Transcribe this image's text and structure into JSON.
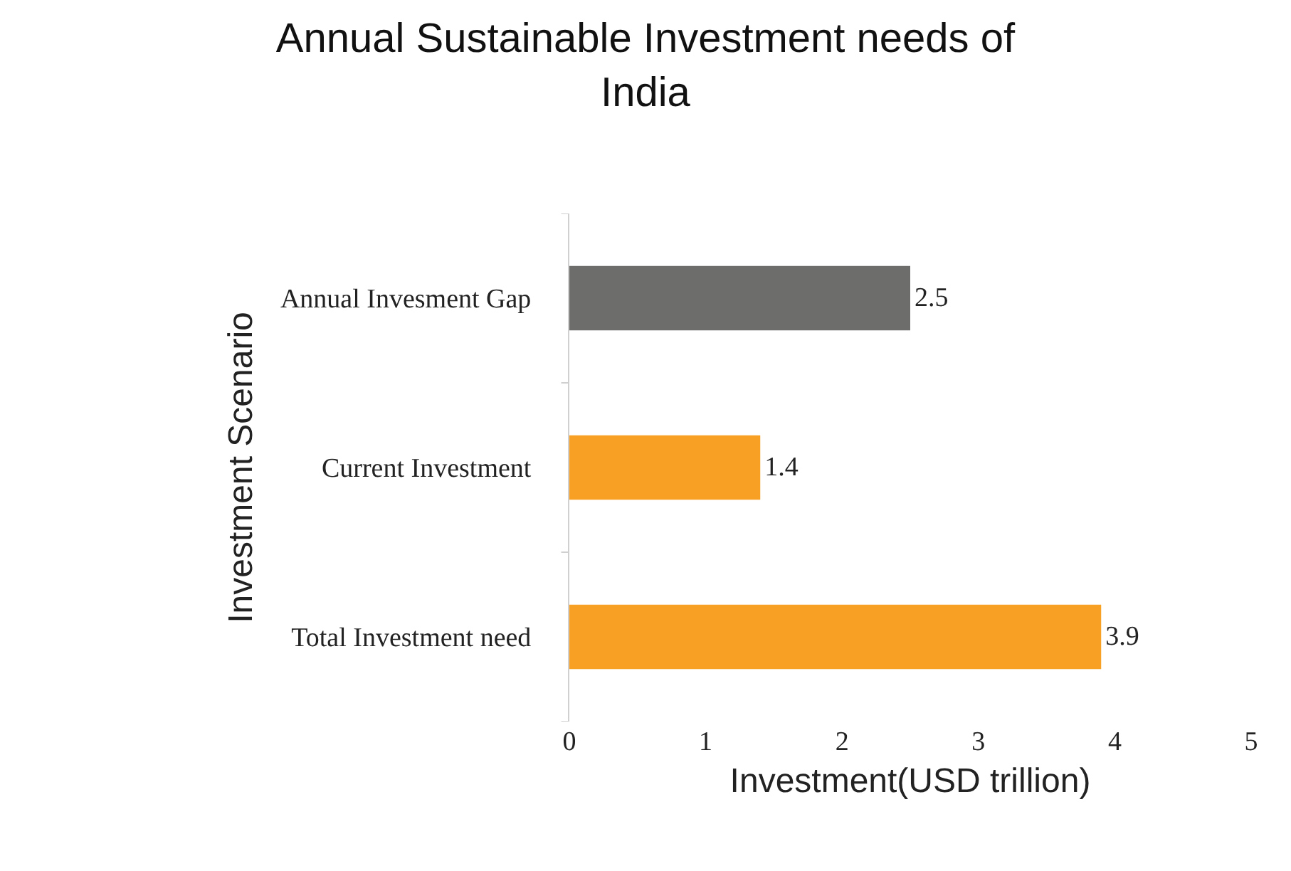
{
  "chart_data": {
    "type": "bar",
    "orientation": "horizontal",
    "title": "Annual Sustainable Investment needs of India",
    "xlabel": "Investment(USD trillion)",
    "ylabel": "Investment Scenario",
    "categories": [
      "Annual Invesment Gap",
      "Current Investment",
      "Total Investment need"
    ],
    "values": [
      2.5,
      1.4,
      3.9
    ],
    "colors": [
      "#6d6e6c",
      "#f7a023",
      "#f7a023"
    ],
    "xlim": [
      0,
      5
    ],
    "xticks": [
      0,
      1,
      2,
      3,
      4,
      5
    ],
    "grid": false,
    "data_labels": true,
    "legend": false
  }
}
